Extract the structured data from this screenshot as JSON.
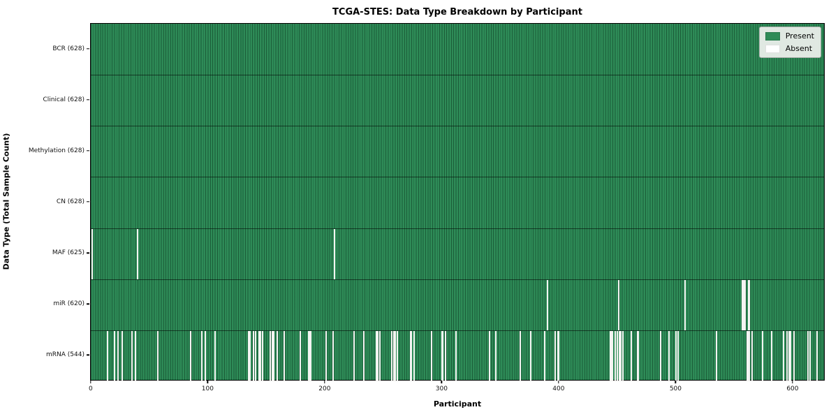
{
  "chart_data": {
    "type": "heatmap",
    "title": "TCGA-STES: Data Type Breakdown by Participant",
    "xlabel": "Participant",
    "ylabel": "Data Type (Total Sample Count)",
    "n_participants": 628,
    "x_ticks": [
      0,
      100,
      200,
      300,
      400,
      500,
      600
    ],
    "xlim": [
      0,
      628
    ],
    "grid": false,
    "legend_position": "upper right",
    "legend": [
      {
        "label": "Present",
        "color": "#2e8b57"
      },
      {
        "label": "Absent",
        "color": "#ffffff"
      }
    ],
    "colors": {
      "present": "#2e8b57",
      "absent": "#f4f4f2",
      "row_separator": "rgba(0,0,0,0.55)",
      "spine": "#000000"
    },
    "rows": [
      {
        "label": "BCR (628)",
        "data_type": "BCR",
        "present_count": 628,
        "absent": []
      },
      {
        "label": "Clinical (628)",
        "data_type": "Clinical",
        "present_count": 628,
        "absent": []
      },
      {
        "label": "Methylation (628)",
        "data_type": "Methylation",
        "present_count": 628,
        "absent": []
      },
      {
        "label": "CN (628)",
        "data_type": "CN",
        "present_count": 628,
        "absent": []
      },
      {
        "label": "MAF (625)",
        "data_type": "MAF",
        "present_count": 625,
        "absent": [
          1,
          40,
          208
        ]
      },
      {
        "label": "miR (620)",
        "data_type": "miR",
        "present_count": 620,
        "absent": [
          390,
          451,
          508,
          557,
          558,
          559,
          562,
          563
        ]
      },
      {
        "label": "mRNA (544)",
        "data_type": "mRNA",
        "present_count": 544,
        "absent": [
          14,
          20,
          23,
          27,
          35,
          38,
          57,
          85,
          95,
          98,
          106,
          135,
          136,
          139,
          141,
          144,
          145,
          147,
          153,
          155,
          156,
          159,
          165,
          179,
          186,
          187,
          188,
          201,
          207,
          225,
          233,
          244,
          245,
          247,
          257,
          259,
          260,
          262,
          273,
          274,
          276,
          291,
          300,
          301,
          303,
          312,
          341,
          346,
          367,
          376,
          388,
          397,
          399,
          400,
          444,
          445,
          446,
          448,
          450,
          452,
          453,
          455,
          462,
          467,
          468,
          487,
          494,
          500,
          502,
          535,
          561,
          562,
          563,
          565,
          574,
          582,
          592,
          595,
          597,
          598,
          601,
          613,
          615,
          621
        ]
      }
    ]
  }
}
